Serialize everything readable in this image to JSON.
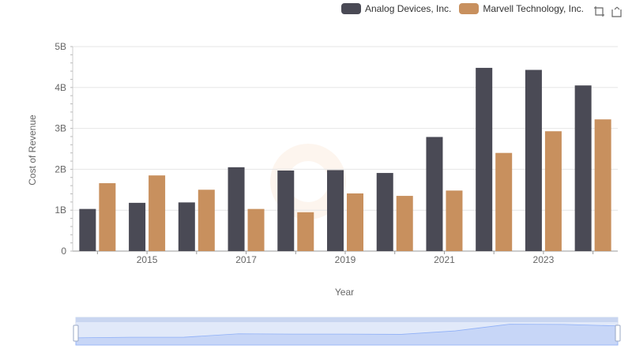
{
  "chart_data": {
    "type": "bar",
    "x": [
      2014,
      2015,
      2016,
      2017,
      2018,
      2019,
      2020,
      2021,
      2022,
      2023,
      2024
    ],
    "x_tick_labels": [
      "2015",
      "2017",
      "2019",
      "2021",
      "2023"
    ],
    "series": [
      {
        "name": "Analog Devices, Inc.",
        "color": "#4a4a55",
        "values": [
          1.03,
          1.18,
          1.19,
          2.05,
          1.97,
          1.98,
          1.91,
          2.79,
          4.48,
          4.43,
          4.05
        ]
      },
      {
        "name": "Marvell Technology, Inc.",
        "color": "#c8905e",
        "values": [
          1.66,
          1.85,
          1.5,
          1.03,
          0.95,
          1.41,
          1.35,
          1.48,
          2.4,
          2.93,
          3.22
        ]
      }
    ],
    "ylabel": "Cost of Revenue",
    "xlabel": "Year",
    "ylim": [
      0,
      5
    ],
    "y_unit": "B",
    "y_tick_labels": [
      "0",
      "1B",
      "2B",
      "3B",
      "4B",
      "5B"
    ],
    "grid": true,
    "legend_position": "top-right",
    "has_range_slider": true
  },
  "toolbar": {
    "icons": [
      "data-zoom-icon",
      "restore-icon"
    ]
  }
}
